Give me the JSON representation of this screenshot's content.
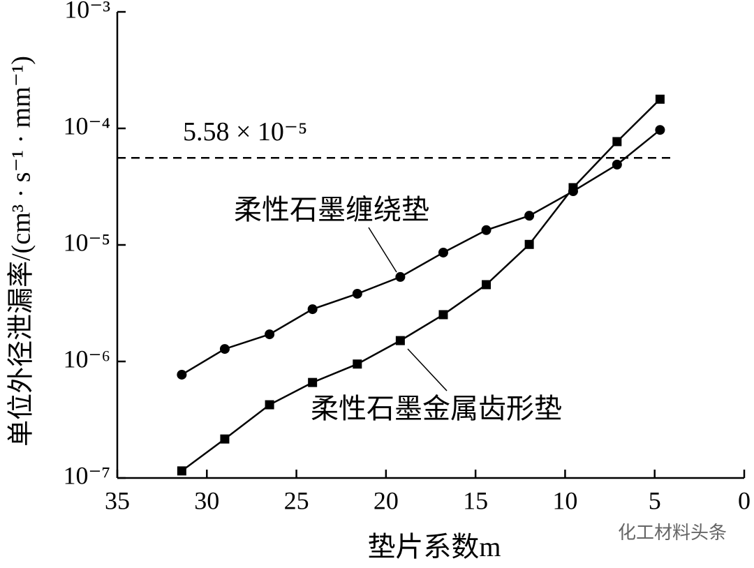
{
  "chart_data": {
    "type": "line",
    "x": [
      31.4,
      29.0,
      26.5,
      24.1,
      21.6,
      19.2,
      16.8,
      14.4,
      12.0,
      9.55,
      7.1,
      4.7
    ],
    "series": [
      {
        "name": "柔性石墨缠绕垫",
        "color": "#000000",
        "marker": "circle",
        "values": [
          7.7e-07,
          1.28e-06,
          1.71e-06,
          2.81e-06,
          3.81e-06,
          5.31e-06,
          8.6e-06,
          1.34e-05,
          1.78e-05,
          2.89e-05,
          4.89e-05,
          9.7e-05
        ]
      },
      {
        "name": "柔性石墨金属齿形垫",
        "color": "#000000",
        "marker": "square",
        "values": [
          1.15e-07,
          2.16e-07,
          4.25e-07,
          6.6e-07,
          9.5e-07,
          1.51e-06,
          2.52e-06,
          4.56e-06,
          1.01e-05,
          3.1e-05,
          7.7e-05,
          0.000178
        ]
      }
    ],
    "xlabel": "垫片系数m",
    "ylabel": "单位外径泄漏率/(cm³ · s⁻¹ · mm⁻¹)",
    "xlim": [
      35,
      0
    ],
    "xticks": [
      35,
      30,
      25,
      20,
      15,
      10,
      5,
      0
    ],
    "ylim": [
      1e-07,
      0.001
    ],
    "ylog": true,
    "yticks": [
      {
        "value": 1e-07,
        "label": "10⁻⁷"
      },
      {
        "value": 1e-06,
        "label": "10⁻⁶"
      },
      {
        "value": 1e-05,
        "label": "10⁻⁵"
      },
      {
        "value": 0.0001,
        "label": "10⁻⁴"
      },
      {
        "value": 0.001,
        "label": "10⁻³"
      }
    ],
    "reference_line": {
      "value": 5.58e-05,
      "label": "5.58 × 10⁻⁵"
    },
    "grid": false,
    "watermark": "化工材料头条"
  }
}
